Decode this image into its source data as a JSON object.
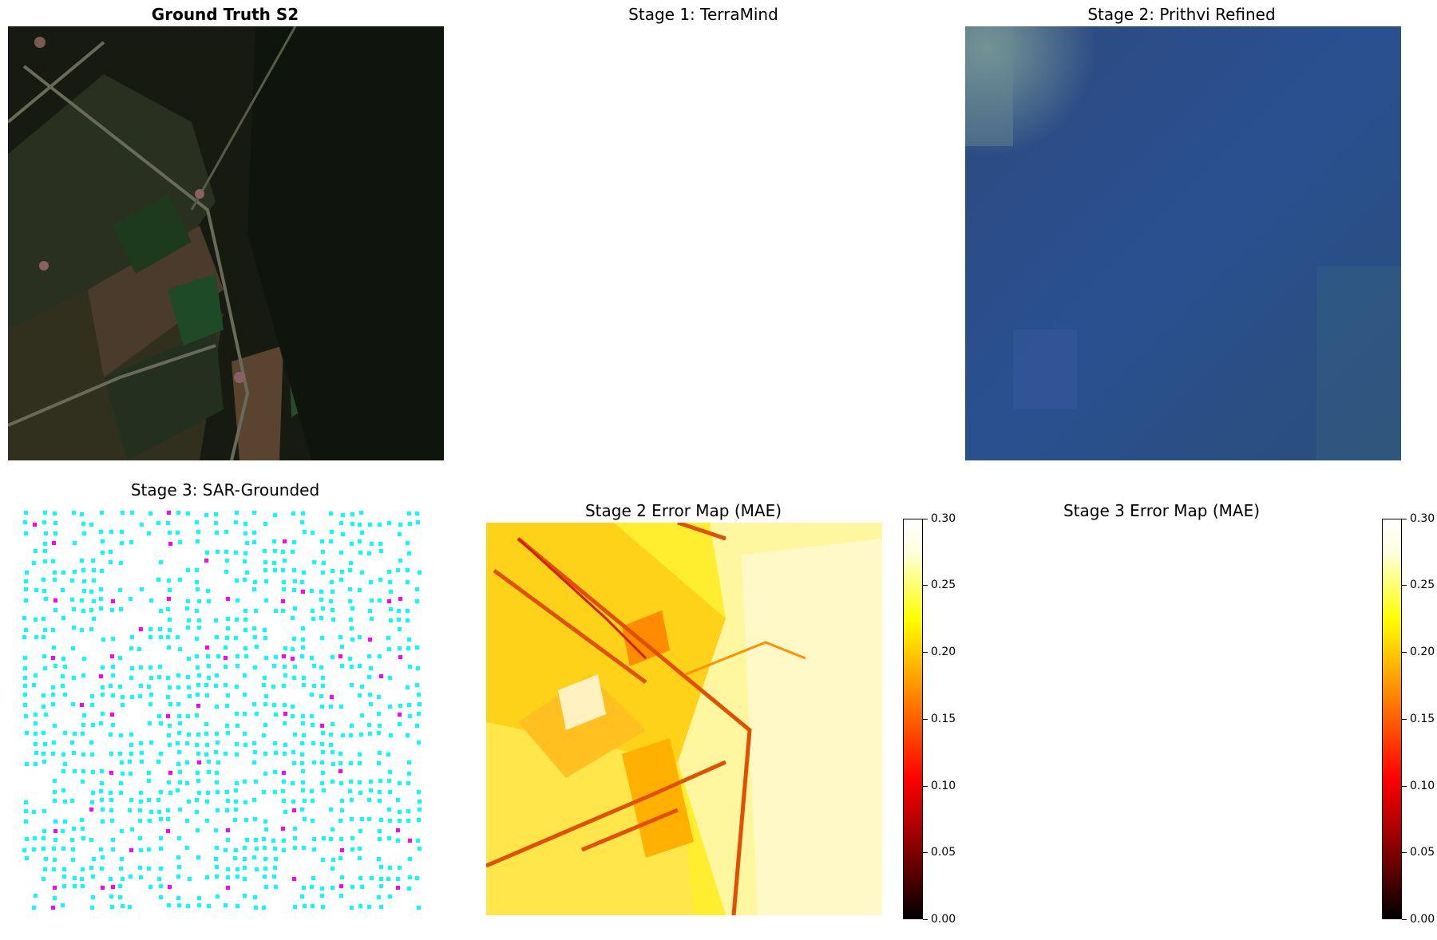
{
  "panels": {
    "ground_truth": {
      "title": "Ground Truth S2"
    },
    "stage1": {
      "title": "Stage 1: TerraMind"
    },
    "stage2": {
      "title": "Stage 2: Prithvi Refined"
    },
    "stage3": {
      "title": "Stage 3: SAR-Grounded"
    },
    "stage2_error": {
      "title": "Stage 2 Error Map (MAE)"
    },
    "stage3_error": {
      "title": "Stage 3 Error Map (MAE)"
    }
  },
  "colorbar": {
    "ticks": [
      "0.00",
      "0.05",
      "0.10",
      "0.15",
      "0.20",
      "0.25",
      "0.30"
    ]
  },
  "colors": {
    "cyan_dots": "#00ffff",
    "magenta_dots": "#ff00ff",
    "prithvi_blue": "#2b4f86"
  }
}
